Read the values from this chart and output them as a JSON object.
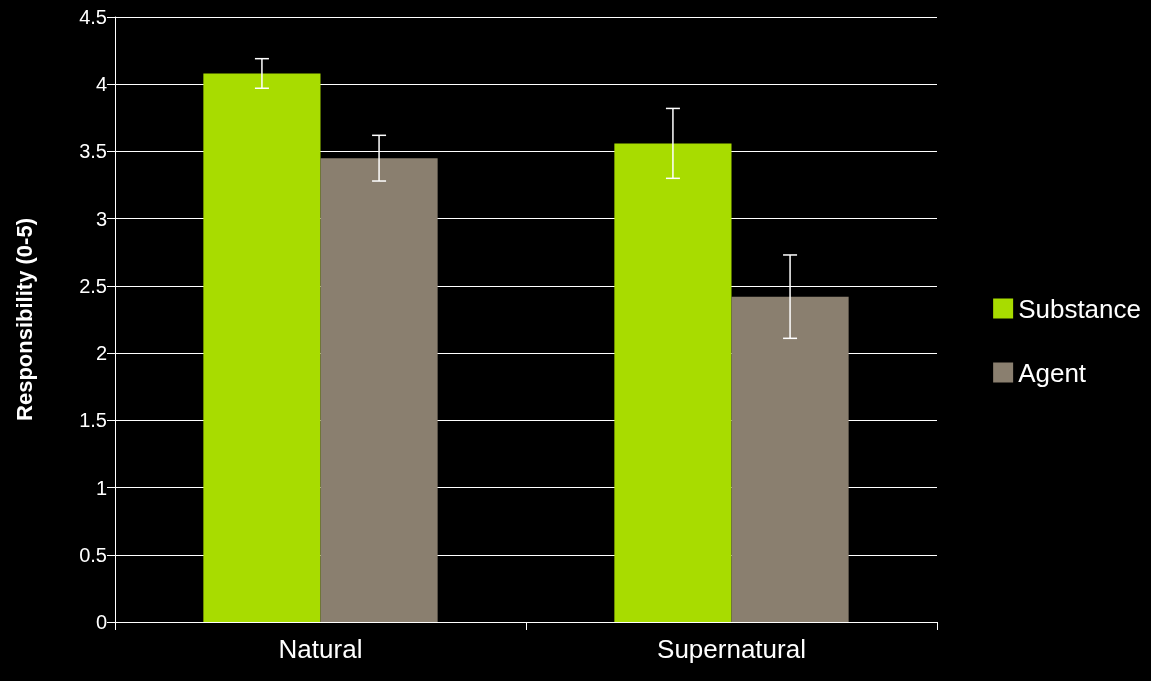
{
  "chart_data": {
    "type": "bar",
    "ylabel": "Responsibility (0-5)",
    "categories": [
      "Natural",
      "Supernatural"
    ],
    "series": [
      {
        "name": "Substance",
        "color": "#a8dc00",
        "values": [
          4.08,
          3.56
        ],
        "errors": [
          0.11,
          0.26
        ]
      },
      {
        "name": "Agent",
        "color": "#8a7f6f",
        "values": [
          3.45,
          2.42
        ],
        "errors": [
          0.17,
          0.31
        ]
      }
    ],
    "ylim": [
      0,
      4.5
    ],
    "yticks": [
      0,
      0.5,
      1,
      1.5,
      2,
      2.5,
      3,
      3.5,
      4,
      4.5
    ],
    "grid": "y",
    "legend": "right"
  }
}
